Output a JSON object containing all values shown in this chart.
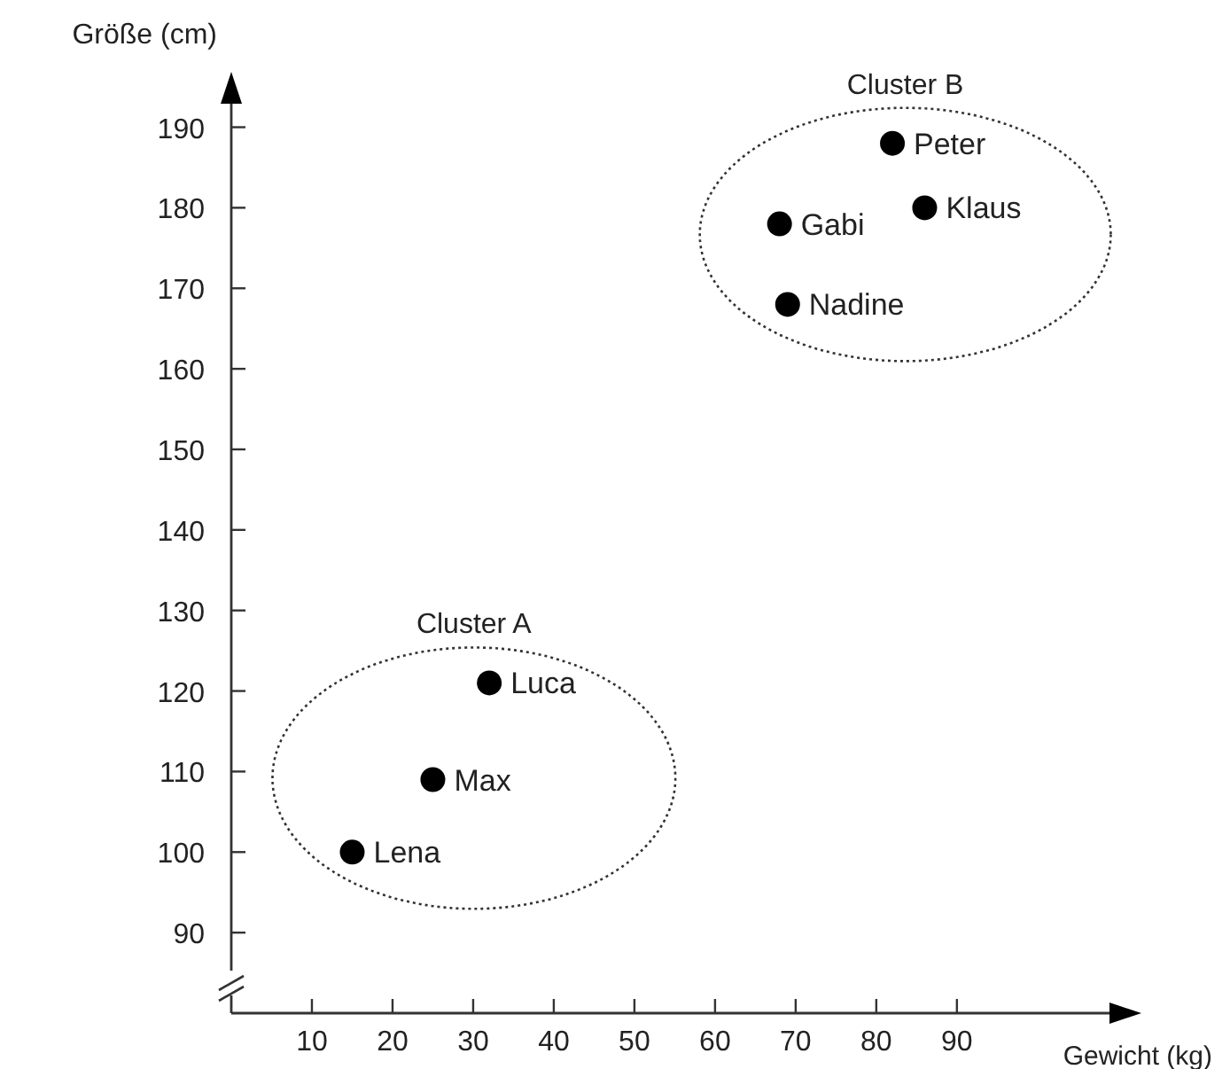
{
  "chart_data": {
    "type": "scatter",
    "xlabel": "Gewicht (kg)",
    "ylabel": "Größe (cm)",
    "xlim": [
      0,
      112
    ],
    "ylim": [
      80,
      196
    ],
    "xticks": [
      10,
      20,
      30,
      40,
      50,
      60,
      70,
      80,
      90
    ],
    "yticks": [
      90,
      100,
      110,
      120,
      130,
      140,
      150,
      160,
      170,
      180,
      190
    ],
    "grid": false,
    "marker": "circle",
    "series": [
      {
        "name": "Cluster A",
        "color": "#000000",
        "x": [
          15,
          25,
          32
        ],
        "values": [
          100,
          109,
          121
        ]
      },
      {
        "name": "Cluster B",
        "color": "#000000",
        "x": [
          68,
          69,
          82,
          86
        ],
        "values": [
          178,
          168,
          188,
          180
        ]
      }
    ],
    "annotations": [
      {
        "text": "Lena",
        "x": 15,
        "y": 100
      },
      {
        "text": "Max",
        "x": 25,
        "y": 109
      },
      {
        "text": "Luca",
        "x": 32,
        "y": 121
      },
      {
        "text": "Gabi",
        "x": 68,
        "y": 178
      },
      {
        "text": "Nadine",
        "x": 69,
        "y": 168
      },
      {
        "text": "Peter",
        "x": 82,
        "y": 188
      },
      {
        "text": "Klaus",
        "x": 86,
        "y": 180
      }
    ]
  }
}
